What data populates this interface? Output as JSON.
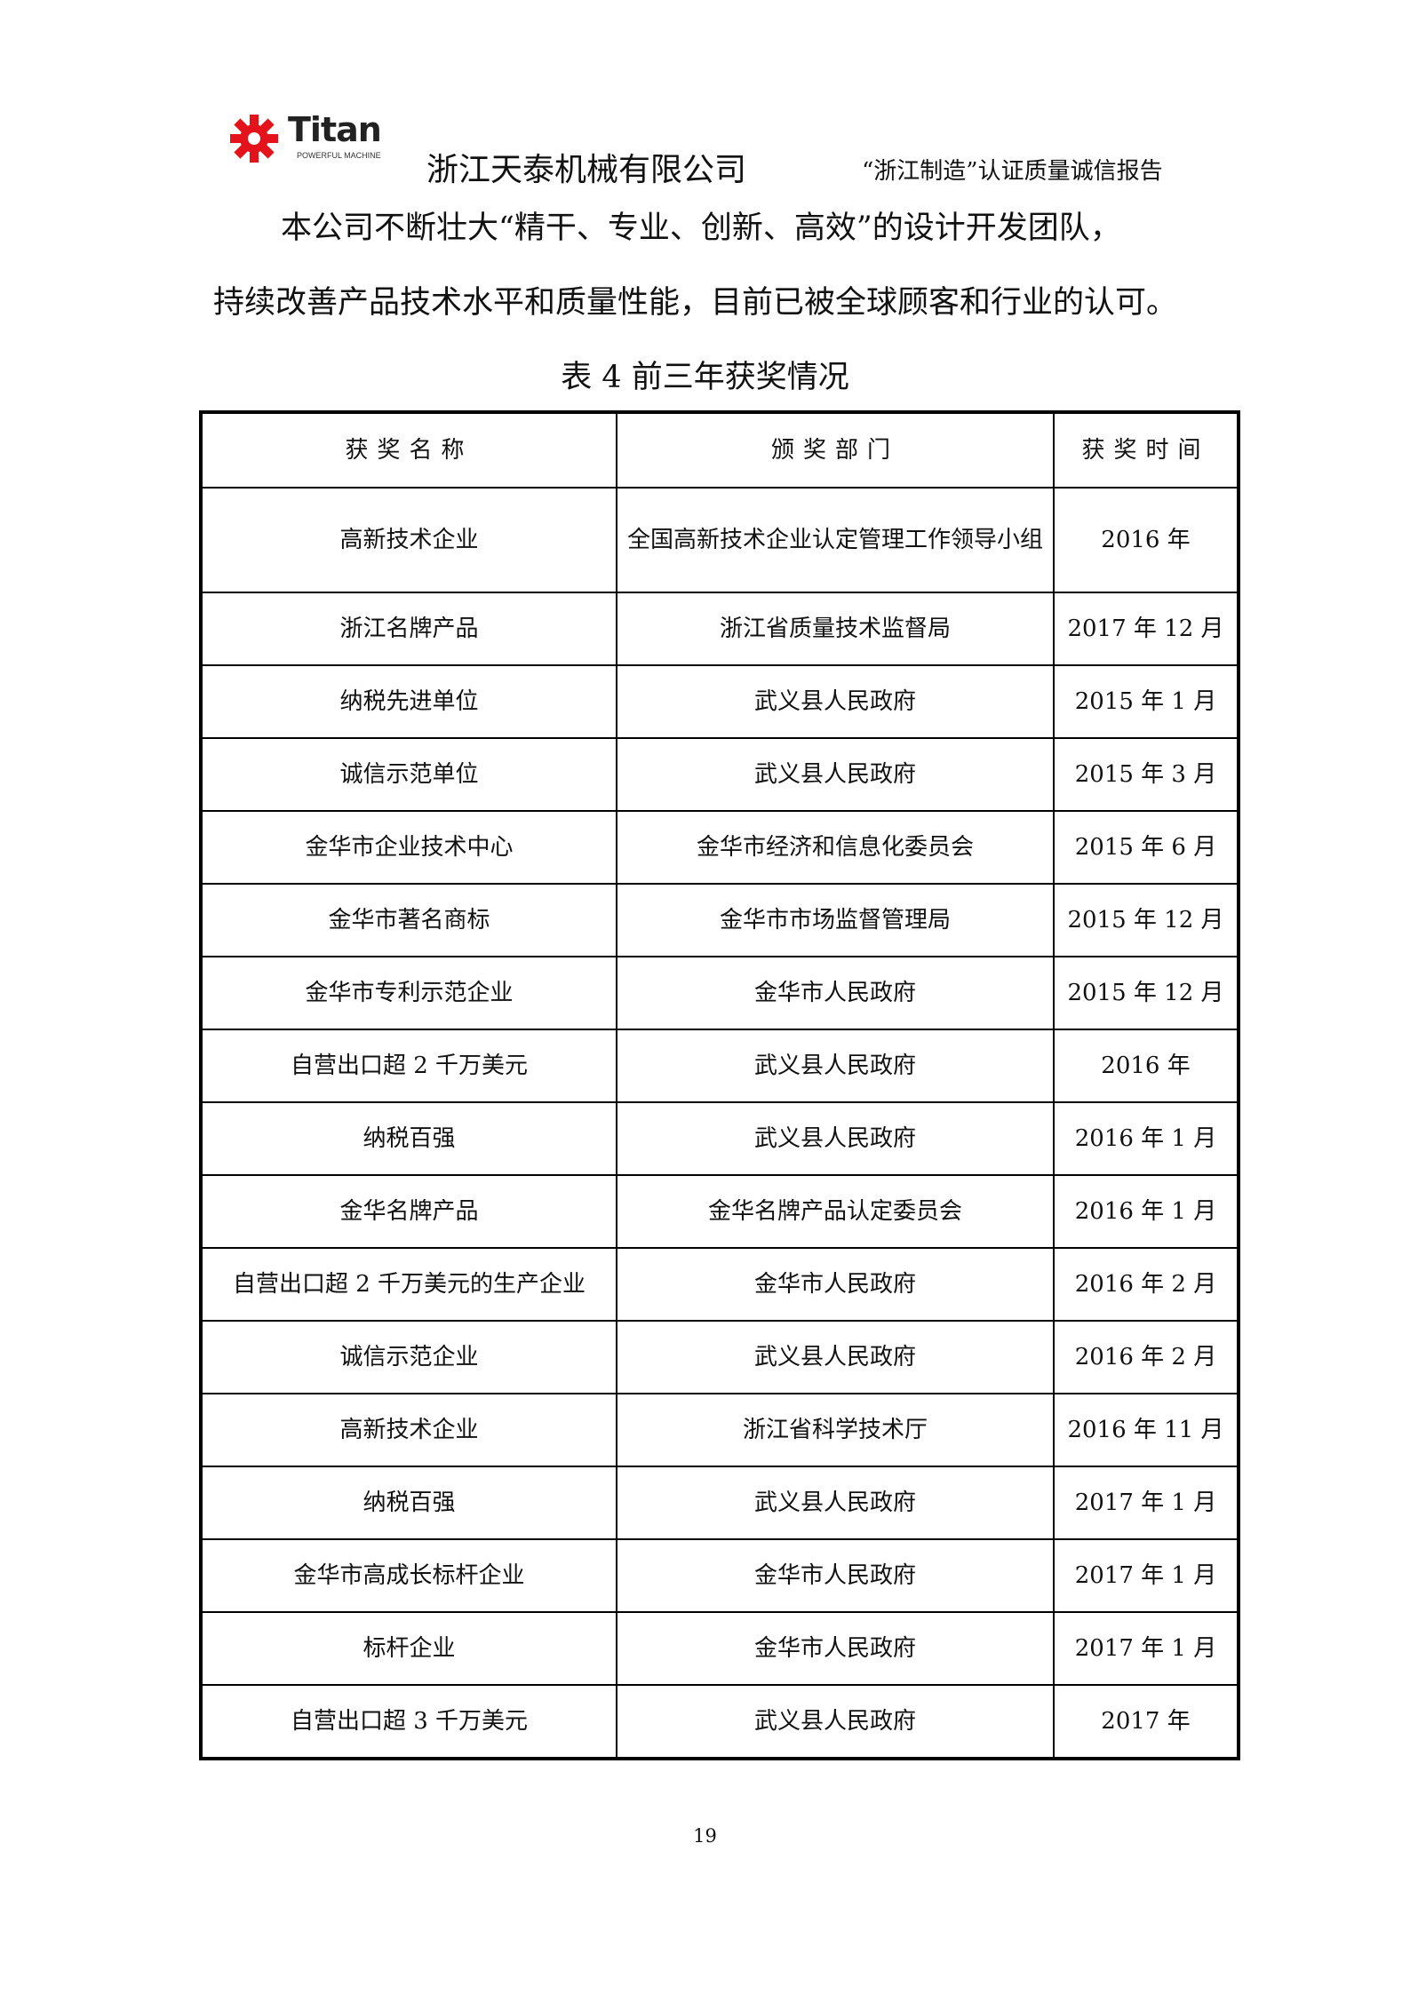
{
  "header": {
    "logo_text": "Titan",
    "logo_subtext": "POWERFUL MACHINE",
    "logo_color": "#e3121b",
    "company_name": "浙江天泰机械有限公司",
    "report_title": "“浙江制造”认证质量诚信报告"
  },
  "body": {
    "paragraph_line1": "本公司不断壮大“精干、专业、创新、高效”的设计开发团队，",
    "paragraph_line2": "持续改善产品技术水平和质量性能，目前已被全球顾客和行业的认可。"
  },
  "table": {
    "caption": "表 4 前三年获奖情况",
    "columns": [
      "获奖名称",
      "颁奖部门",
      "获奖时间"
    ],
    "rows": [
      [
        "高新技术企业",
        "全国高新技术企业认定管理工作领导小组",
        "2016 年"
      ],
      [
        "浙江名牌产品",
        "浙江省质量技术监督局",
        "2017 年 12 月"
      ],
      [
        "纳税先进单位",
        "武义县人民政府",
        "2015 年 1 月"
      ],
      [
        "诚信示范单位",
        "武义县人民政府",
        "2015 年 3 月"
      ],
      [
        "金华市企业技术中心",
        "金华市经济和信息化委员会",
        "2015 年 6 月"
      ],
      [
        "金华市著名商标",
        "金华市市场监督管理局",
        "2015 年 12 月"
      ],
      [
        "金华市专利示范企业",
        "金华市人民政府",
        "2015 年 12 月"
      ],
      [
        "自营出口超 2 千万美元",
        "武义县人民政府",
        "2016 年"
      ],
      [
        "纳税百强",
        "武义县人民政府",
        "2016 年 1 月"
      ],
      [
        "金华名牌产品",
        "金华名牌产品认定委员会",
        "2016 年 1 月"
      ],
      [
        "自营出口超 2 千万美元的生产企业",
        "金华市人民政府",
        "2016 年 2 月"
      ],
      [
        "诚信示范企业",
        "武义县人民政府",
        "2016 年 2 月"
      ],
      [
        "高新技术企业",
        "浙江省科学技术厅",
        "2016 年 11 月"
      ],
      [
        "纳税百强",
        "武义县人民政府",
        "2017 年 1 月"
      ],
      [
        "金华市高成长标杆企业",
        "金华市人民政府",
        "2017 年 1 月"
      ],
      [
        "标杆企业",
        "金华市人民政府",
        "2017 年 1 月"
      ],
      [
        "自营出口超 3 千万美元",
        "武义县人民政府",
        "2017 年"
      ]
    ]
  },
  "footer": {
    "page_number": "19"
  }
}
